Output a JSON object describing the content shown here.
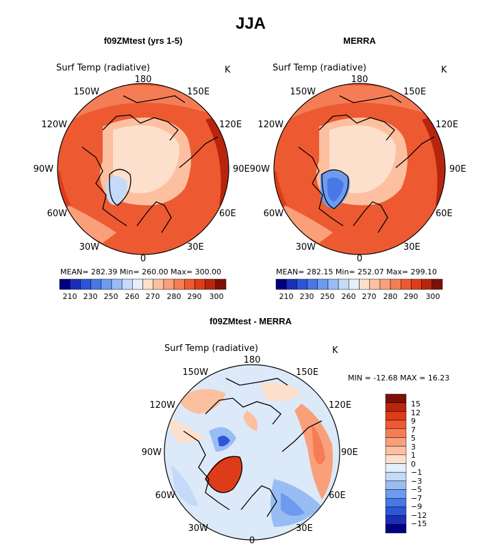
{
  "page_title": "JJA",
  "chart_data": [
    {
      "type": "heatmap",
      "projection": "north-polar-stereographic",
      "title": "f09ZMtest (yrs 1-5)",
      "variable": "Surf Temp (radiative)",
      "units": "K",
      "lon_labels": [
        "180",
        "150E",
        "120E",
        "90E",
        "60E",
        "30E",
        "0",
        "30W",
        "60W",
        "90W",
        "120W",
        "150W"
      ],
      "stats": {
        "mean": "282.39",
        "min": "260.00",
        "max": "300.00"
      },
      "stats_text": "MEAN= 282.39   Min= 260.00   Max= 300.00",
      "colorbar_ticks": [
        "210",
        "230",
        "250",
        "260",
        "270",
        "280",
        "290",
        "300"
      ]
    },
    {
      "type": "heatmap",
      "projection": "north-polar-stereographic",
      "title": "MERRA",
      "variable": "Surf Temp (radiative)",
      "units": "K",
      "lon_labels": [
        "180",
        "150E",
        "120E",
        "90E",
        "60E",
        "30E",
        "0",
        "30W",
        "60W",
        "90W",
        "120W",
        "150W"
      ],
      "stats": {
        "mean": "282.15",
        "min": "252.07",
        "max": "299.10"
      },
      "stats_text": "MEAN= 282.15   Min= 252.07   Max= 299.10",
      "colorbar_ticks": [
        "210",
        "230",
        "250",
        "260",
        "270",
        "280",
        "290",
        "300"
      ]
    },
    {
      "type": "heatmap",
      "projection": "north-polar-stereographic",
      "title": "f09ZMtest - MERRA",
      "variable": "Surf Temp (radiative)",
      "units": "K",
      "lon_labels": [
        "180",
        "150E",
        "120E",
        "90E",
        "60E",
        "30E",
        "0",
        "30W",
        "60W",
        "90W",
        "120W",
        "150W"
      ],
      "stats": {
        "min": "-12.68",
        "max": "16.23"
      },
      "stats_text": "MIN = -12.68 MAX =  16.23",
      "colorbar_ticks": [
        "15",
        "12",
        "9",
        "7",
        "5",
        "3",
        "1",
        "0",
        "−1",
        "−3",
        "−5",
        "−7",
        "−9",
        "−12",
        "−15"
      ]
    }
  ],
  "colors": {
    "abs_scale": [
      "#000080",
      "#1a2fb5",
      "#2c55d8",
      "#4878e6",
      "#6e9bf0",
      "#98bdf5",
      "#c4daf8",
      "#e6f0fb",
      "#fde0cc",
      "#fcc0a0",
      "#f9a07a",
      "#f57d55",
      "#ed5a32",
      "#de3c19",
      "#b8250e",
      "#7e0f08"
    ],
    "diff_scale": [
      "#7e0f08",
      "#b8250e",
      "#de3c19",
      "#ed5a32",
      "#f57d55",
      "#f9a07a",
      "#fcc0a0",
      "#fde0cc",
      "#e6f0fb",
      "#c4daf8",
      "#98bdf5",
      "#6e9bf0",
      "#4878e6",
      "#2c55d8",
      "#1a2fb5",
      "#000080"
    ],
    "land_outline": "#000000"
  }
}
